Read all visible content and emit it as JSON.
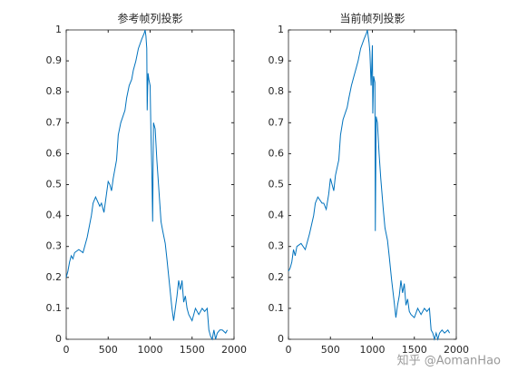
{
  "chart_data": [
    {
      "type": "line",
      "title": "参考帧列投影",
      "color": "#0072bd",
      "xlim": [
        0,
        2000
      ],
      "xticks": [
        0,
        500,
        1000,
        1500,
        2000
      ],
      "ylim": [
        0,
        1
      ],
      "yticks": [
        0,
        0.1,
        0.2,
        0.3,
        0.4,
        0.5,
        0.6,
        0.7,
        0.8,
        0.9,
        1
      ],
      "x": [
        0,
        20,
        40,
        60,
        80,
        100,
        150,
        200,
        250,
        300,
        320,
        350,
        400,
        420,
        450,
        480,
        500,
        520,
        540,
        560,
        600,
        620,
        650,
        700,
        720,
        750,
        780,
        800,
        830,
        860,
        900,
        930,
        940,
        950,
        960,
        965,
        975,
        985,
        1000,
        1010,
        1020,
        1030,
        1040,
        1060,
        1080,
        1100,
        1130,
        1150,
        1180,
        1200,
        1230,
        1260,
        1280,
        1300,
        1320,
        1340,
        1360,
        1380,
        1400,
        1420,
        1440,
        1460,
        1500,
        1540,
        1580,
        1620,
        1650,
        1680,
        1700,
        1720,
        1740,
        1760,
        1780,
        1800,
        1830,
        1860,
        1900,
        1920
      ],
      "values": [
        0.2,
        0.22,
        0.25,
        0.27,
        0.26,
        0.28,
        0.29,
        0.28,
        0.33,
        0.4,
        0.44,
        0.46,
        0.43,
        0.44,
        0.41,
        0.47,
        0.51,
        0.5,
        0.48,
        0.52,
        0.58,
        0.66,
        0.7,
        0.74,
        0.78,
        0.82,
        0.84,
        0.87,
        0.9,
        0.94,
        0.97,
        0.99,
        1.0,
        0.98,
        0.94,
        0.74,
        0.86,
        0.84,
        0.82,
        0.66,
        0.55,
        0.38,
        0.7,
        0.68,
        0.58,
        0.5,
        0.38,
        0.35,
        0.31,
        0.26,
        0.18,
        0.1,
        0.06,
        0.1,
        0.14,
        0.19,
        0.16,
        0.19,
        0.12,
        0.14,
        0.1,
        0.08,
        0.06,
        0.1,
        0.08,
        0.1,
        0.09,
        0.1,
        0.03,
        0.01,
        0.0,
        0.03,
        0.0,
        0.02,
        0.03,
        0.03,
        0.02,
        0.03
      ]
    },
    {
      "type": "line",
      "title": "当前帧列投影",
      "color": "#0072bd",
      "xlim": [
        0,
        2000
      ],
      "xticks": [
        0,
        500,
        1000,
        1500,
        2000
      ],
      "ylim": [
        0,
        1
      ],
      "yticks": [
        0,
        0.1,
        0.2,
        0.3,
        0.4,
        0.5,
        0.6,
        0.7,
        0.8,
        0.9,
        1
      ],
      "x": [
        0,
        20,
        40,
        60,
        80,
        100,
        150,
        200,
        250,
        300,
        320,
        350,
        400,
        420,
        450,
        480,
        500,
        520,
        540,
        560,
        600,
        620,
        650,
        700,
        720,
        750,
        780,
        800,
        830,
        860,
        900,
        930,
        940,
        950,
        960,
        970,
        985,
        1000,
        1005,
        1015,
        1030,
        1035,
        1045,
        1060,
        1080,
        1100,
        1130,
        1150,
        1180,
        1200,
        1230,
        1260,
        1280,
        1300,
        1320,
        1340,
        1360,
        1380,
        1400,
        1420,
        1440,
        1460,
        1500,
        1540,
        1580,
        1620,
        1650,
        1680,
        1700,
        1720,
        1740,
        1760,
        1780,
        1800,
        1830,
        1860,
        1900,
        1920
      ],
      "values": [
        0.22,
        0.23,
        0.25,
        0.29,
        0.27,
        0.3,
        0.31,
        0.29,
        0.34,
        0.4,
        0.44,
        0.46,
        0.44,
        0.44,
        0.42,
        0.47,
        0.52,
        0.5,
        0.48,
        0.53,
        0.58,
        0.66,
        0.71,
        0.75,
        0.78,
        0.82,
        0.85,
        0.87,
        0.9,
        0.94,
        0.97,
        0.99,
        1.0,
        0.98,
        0.96,
        0.93,
        0.82,
        0.95,
        0.73,
        0.85,
        0.83,
        0.35,
        0.72,
        0.7,
        0.6,
        0.52,
        0.42,
        0.36,
        0.32,
        0.27,
        0.19,
        0.12,
        0.07,
        0.11,
        0.14,
        0.19,
        0.15,
        0.18,
        0.11,
        0.13,
        0.09,
        0.08,
        0.07,
        0.1,
        0.08,
        0.1,
        0.09,
        0.1,
        0.03,
        0.02,
        0.0,
        0.02,
        0.0,
        0.02,
        0.03,
        0.02,
        0.03,
        0.02
      ]
    }
  ],
  "watermark": "知乎 @AomanHao"
}
